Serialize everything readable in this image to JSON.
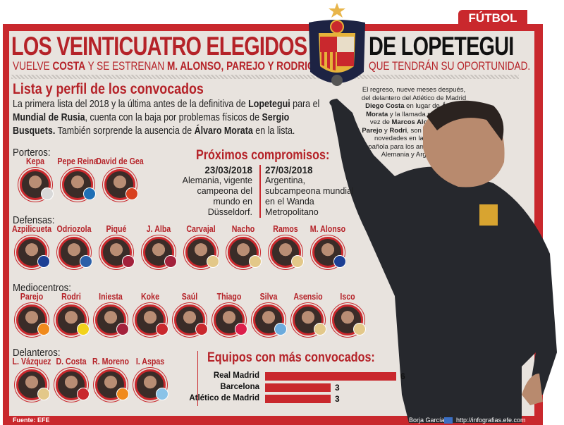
{
  "section_tab": "FÚTBOL",
  "title": {
    "part1": "LOS VEINTICUATRO ELEGIDOS",
    "part2": "DE LOPETEGUI"
  },
  "subtitle": {
    "left": [
      {
        "t": "VUELVE ",
        "b": false
      },
      {
        "t": "COSTA",
        "b": true
      },
      {
        "t": " Y SE ESTRENAN ",
        "b": false
      },
      {
        "t": "M. ALONSO, PAREJO Y RODRIGO",
        "b": true
      }
    ],
    "right": "QUE TENDRÁN SU OPORTUNIDAD."
  },
  "crest": {
    "years": [
      "19",
      "20"
    ],
    "star_color": "#e8b54a"
  },
  "intro": {
    "heading": "Lista y perfil de los convocados",
    "text": [
      {
        "t": "La primera lista del 2018 y la última antes de la definitiva de ",
        "b": false
      },
      {
        "t": "Lopetegui",
        "b": true
      },
      {
        "t": " para el ",
        "b": false
      },
      {
        "t": "Mundial de Rusia",
        "b": true
      },
      {
        "t": ", cuenta con la baja por problemas físicos de ",
        "b": false
      },
      {
        "t": "Sergio Busquets.",
        "b": true
      },
      {
        "t": " También sorprende la ausencia de ",
        "b": false
      },
      {
        "t": "Álvaro Morata",
        "b": true
      },
      {
        "t": " en la lista.",
        "b": false
      }
    ]
  },
  "sidebar_note": [
    {
      "t": "El regreso, nueve meses después, del delantero del Atlético de Madrid ",
      "b": false
    },
    {
      "t": "Diego Costa",
      "b": true
    },
    {
      "t": " en lugar de ",
      "b": false
    },
    {
      "t": "Álvaro Morata",
      "b": true
    },
    {
      "t": " y la llamada por primera vez de ",
      "b": false
    },
    {
      "t": "Marcos Alonso, Dani Parejo",
      "b": true
    },
    {
      "t": " y ",
      "b": false
    },
    {
      "t": "Rodri",
      "b": true
    },
    {
      "t": ", son las principales novedades en la selección española para los amistosos contra Alemania y Argentina.",
      "b": false
    }
  ],
  "groups": [
    {
      "label": "Porteros:",
      "players": [
        {
          "name": "Kepa",
          "club": "athletic-badge",
          "color": "#d8d8d8"
        },
        {
          "name": "Pepe Reina",
          "club": "napoli-badge",
          "color": "#1f6fb5"
        },
        {
          "name": "David de Gea",
          "club": "manchester-united-badge",
          "color": "#d8401e"
        }
      ]
    },
    {
      "label": "Defensas:",
      "players": [
        {
          "name": "Azpilicueta",
          "club": "chelsea-badge",
          "color": "#1c3f94"
        },
        {
          "name": "Odriozola",
          "club": "real-sociedad-badge",
          "color": "#2b5fa8"
        },
        {
          "name": "Piqué",
          "club": "barcelona-badge",
          "color": "#a3213b"
        },
        {
          "name": "J. Alba",
          "club": "barcelona-badge",
          "color": "#a3213b"
        },
        {
          "name": "Carvajal",
          "club": "real-madrid-badge",
          "color": "#e3c889"
        },
        {
          "name": "Nacho",
          "club": "real-madrid-badge",
          "color": "#e3c889"
        },
        {
          "name": "Ramos",
          "club": "real-madrid-badge",
          "color": "#e3c889"
        },
        {
          "name": "M. Alonso",
          "club": "chelsea-badge",
          "color": "#1c3f94"
        }
      ]
    },
    {
      "label": "Mediocentros:",
      "players": [
        {
          "name": "Parejo",
          "club": "valencia-badge",
          "color": "#f08a1c"
        },
        {
          "name": "Rodri",
          "club": "villarreal-badge",
          "color": "#f2d21b"
        },
        {
          "name": "Iniesta",
          "club": "barcelona-badge",
          "color": "#a3213b"
        },
        {
          "name": "Koke",
          "club": "atletico-madrid-badge",
          "color": "#c9282d"
        },
        {
          "name": "Saúl",
          "club": "atletico-madrid-badge",
          "color": "#c9282d"
        },
        {
          "name": "Thiago",
          "club": "bayern-badge",
          "color": "#dc1f4b"
        },
        {
          "name": "Silva",
          "club": "manchester-city-badge",
          "color": "#6cabdd"
        },
        {
          "name": "Asensio",
          "club": "real-madrid-badge",
          "color": "#e3c889"
        },
        {
          "name": "Isco",
          "club": "real-madrid-badge",
          "color": "#e3c889"
        }
      ]
    },
    {
      "label": "Delanteros:",
      "players": [
        {
          "name": "L. Vázquez",
          "club": "real-madrid-badge",
          "color": "#e3c889"
        },
        {
          "name": "D. Costa",
          "club": "atletico-madrid-badge",
          "color": "#c9282d"
        },
        {
          "name": "R. Moreno",
          "club": "valencia-badge",
          "color": "#f08a1c"
        },
        {
          "name": "I. Aspas",
          "club": "celta-badge",
          "color": "#8ac3e8"
        }
      ]
    }
  ],
  "upcoming": {
    "heading": "Próximos compromisos:",
    "matches": [
      {
        "date": "23/03/2018",
        "text": "Alemania, vigente campeona del mundo en Düsseldorf."
      },
      {
        "date": "27/03/2018",
        "text": "Argentina, subcampeona mundial en el Wanda Metropolitano"
      }
    ]
  },
  "chart_data": {
    "type": "bar",
    "orientation": "horizontal",
    "title": "Equipos con más convocados:",
    "categories": [
      "Real Madrid",
      "Barcelona",
      "Atlético de Madrid"
    ],
    "values": [
      6,
      3,
      3
    ],
    "bar_color": "#c9282d"
  },
  "footer": {
    "source": "Fuente: EFE",
    "author": "Borja García",
    "url": "http://infografias.efe.com"
  },
  "colors": {
    "accent": "#c9282d",
    "background": "#e8e3de"
  }
}
